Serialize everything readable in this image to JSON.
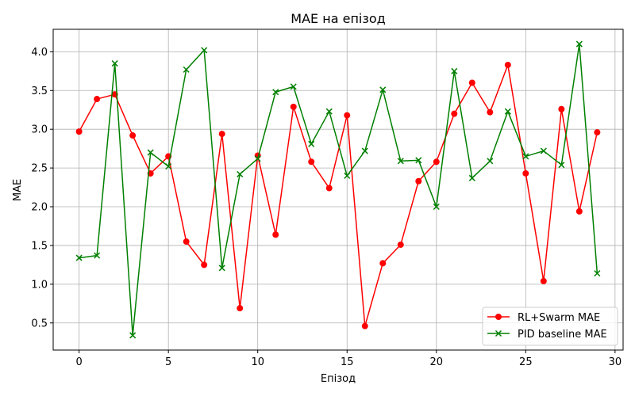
{
  "chart_data": {
    "type": "line",
    "title": "MAE на епізод",
    "xlabel": "Епізод",
    "ylabel": "MAE",
    "x": [
      0,
      1,
      2,
      3,
      4,
      5,
      6,
      7,
      8,
      9,
      10,
      11,
      12,
      13,
      14,
      15,
      16,
      17,
      18,
      19,
      20,
      21,
      22,
      23,
      24,
      25,
      26,
      27,
      28,
      29
    ],
    "xlim": [
      -1.45,
      30.45
    ],
    "ylim": [
      0.15,
      4.29
    ],
    "x_ticks": [
      0,
      5,
      10,
      15,
      20,
      25,
      30
    ],
    "y_ticks": [
      0.5,
      1.0,
      1.5,
      2.0,
      2.5,
      3.0,
      3.5,
      4.0
    ],
    "x_tick_labels": [
      "0",
      "5",
      "10",
      "15",
      "20",
      "25",
      "30"
    ],
    "y_tick_labels": [
      "0.5",
      "1.0",
      "1.5",
      "2.0",
      "2.5",
      "3.0",
      "3.5",
      "4.0"
    ],
    "grid": true,
    "legend_position": "lower-right",
    "series": [
      {
        "name": "RL+Swarm MAE",
        "color": "#ff0000",
        "marker": "circle",
        "values": [
          2.97,
          3.39,
          3.45,
          2.92,
          2.43,
          2.65,
          1.55,
          1.25,
          2.94,
          0.69,
          2.66,
          1.64,
          3.29,
          2.58,
          2.24,
          3.18,
          0.46,
          1.27,
          1.51,
          2.33,
          2.58,
          3.2,
          3.6,
          3.22,
          3.83,
          2.43,
          1.04,
          3.26,
          1.94,
          2.96
        ]
      },
      {
        "name": "PID baseline MAE",
        "color": "#008000",
        "marker": "x",
        "values": [
          1.34,
          1.37,
          3.85,
          0.34,
          2.7,
          2.52,
          3.77,
          4.02,
          1.21,
          2.42,
          2.62,
          3.48,
          3.55,
          2.81,
          3.23,
          2.4,
          2.72,
          3.51,
          2.59,
          2.6,
          2.0,
          3.75,
          2.37,
          2.59,
          3.23,
          2.65,
          2.72,
          2.54,
          4.1,
          1.14
        ]
      }
    ]
  }
}
